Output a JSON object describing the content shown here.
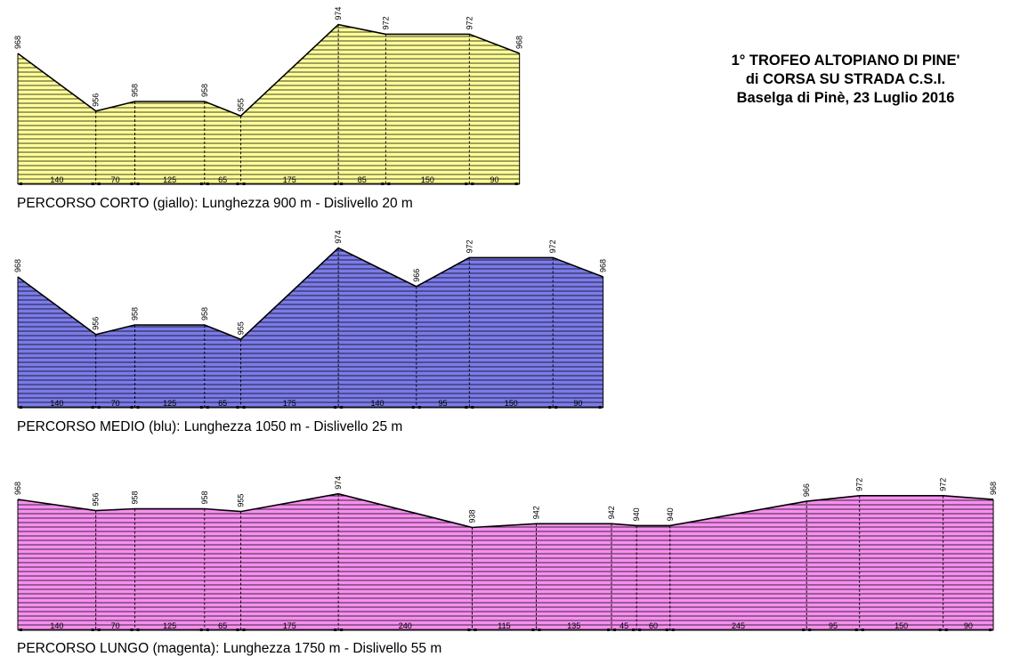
{
  "title": {
    "line1": "1° TROFEO ALTOPIANO DI PINE'",
    "line2": "di CORSA SU STRADA C.S.I.",
    "line3": "Baselga di Pinè, 23 Luglio 2016"
  },
  "chart_data": [
    {
      "type": "area",
      "id": "corto",
      "caption": "PERCORSO CORTO (giallo): Lunghezza 900 m - Dislivello 20 m",
      "fill": "#ffff99",
      "points_altitude": [
        968,
        956,
        958,
        958,
        955,
        974,
        972,
        972,
        968
      ],
      "segments_m": [
        140,
        70,
        125,
        65,
        175,
        85,
        150,
        90
      ],
      "grid": true
    },
    {
      "type": "area",
      "id": "medio",
      "caption": "PERCORSO MEDIO (blu): Lunghezza 1050 m - Dislivello 25 m",
      "fill": "#7b7bea",
      "points_altitude": [
        968,
        956,
        958,
        958,
        955,
        974,
        966,
        972,
        972,
        968
      ],
      "segments_m": [
        140,
        70,
        125,
        65,
        175,
        140,
        95,
        150,
        90
      ],
      "grid": true
    },
    {
      "type": "area",
      "id": "lungo",
      "caption": "PERCORSO LUNGO (magenta): Lunghezza 1750 m - Dislivello 55 m",
      "fill": "#f78ff0",
      "points_altitude": [
        968,
        956,
        958,
        958,
        955,
        974,
        938,
        942,
        942,
        940,
        940,
        966,
        972,
        972,
        968
      ],
      "segments_m": [
        140,
        70,
        125,
        65,
        175,
        240,
        115,
        135,
        45,
        60,
        245,
        95,
        150,
        90
      ],
      "grid": true
    }
  ]
}
